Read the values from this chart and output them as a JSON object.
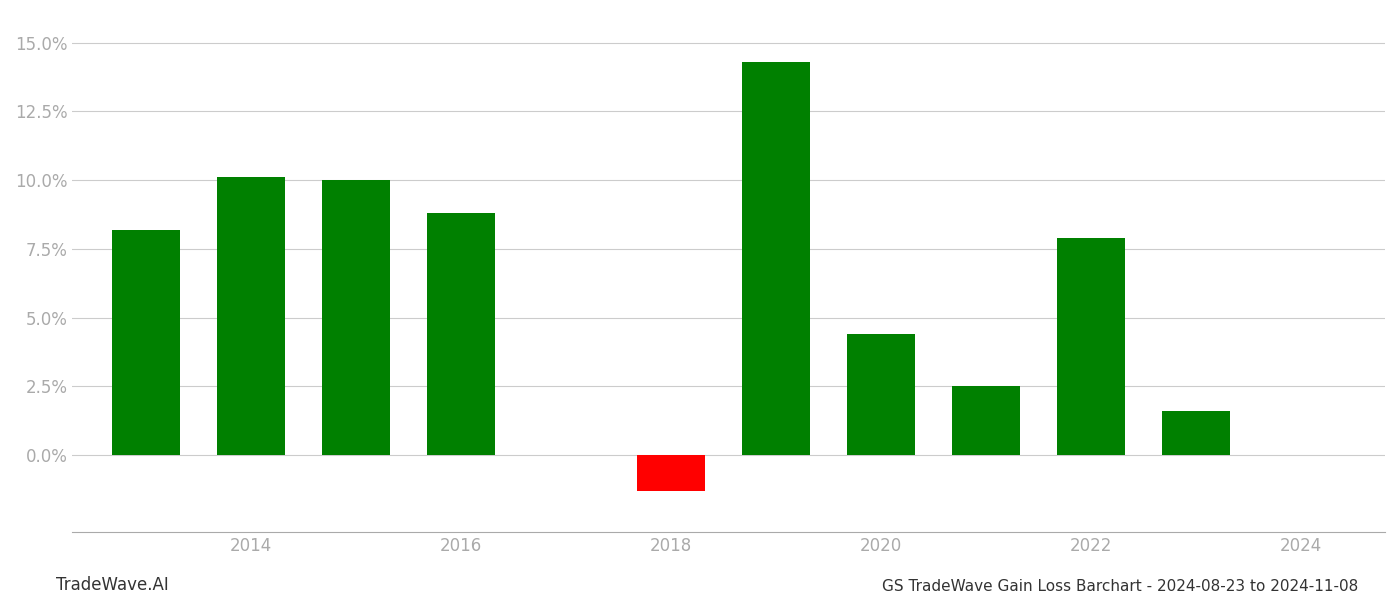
{
  "years": [
    2013,
    2014,
    2015,
    2016,
    2017,
    2018,
    2019,
    2020,
    2021,
    2022,
    2023
  ],
  "values": [
    0.082,
    0.101,
    0.1,
    0.088,
    0.0,
    -0.013,
    0.143,
    0.044,
    0.025,
    0.079,
    0.016
  ],
  "colors": [
    "#008000",
    "#008000",
    "#008000",
    "#008000",
    "#008000",
    "#ff0000",
    "#008000",
    "#008000",
    "#008000",
    "#008000",
    "#008000"
  ],
  "title": "GS TradeWave Gain Loss Barchart - 2024-08-23 to 2024-11-08",
  "watermark": "TradeWave.AI",
  "ylim_min": -0.028,
  "ylim_max": 0.16,
  "background_color": "#ffffff",
  "grid_color": "#cccccc",
  "axis_label_color": "#aaaaaa",
  "bar_width": 0.65,
  "xlim_min": 2012.3,
  "xlim_max": 2024.8,
  "xticks": [
    2014,
    2016,
    2018,
    2020,
    2022,
    2024
  ],
  "yticks": [
    0.0,
    0.025,
    0.05,
    0.075,
    0.1,
    0.125,
    0.15
  ],
  "watermark_color": "#333333",
  "title_color": "#333333",
  "watermark_fontsize": 12,
  "title_fontsize": 11
}
